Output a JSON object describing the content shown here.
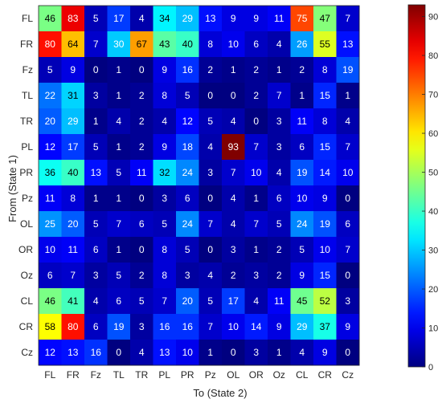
{
  "chart_data": {
    "type": "heatmap",
    "title": "",
    "xlabel": "To (State 2)",
    "ylabel": "From (State 1)",
    "x_categories": [
      "FL",
      "FR",
      "Fz",
      "TL",
      "TR",
      "PL",
      "PR",
      "Pz",
      "OL",
      "OR",
      "Oz",
      "CL",
      "CR",
      "Cz"
    ],
    "y_categories": [
      "FL",
      "FR",
      "Fz",
      "TL",
      "TR",
      "PL",
      "PR",
      "Pz",
      "OL",
      "OR",
      "Oz",
      "CL",
      "CR",
      "Cz"
    ],
    "values": [
      [
        46,
        83,
        5,
        17,
        4,
        34,
        29,
        13,
        9,
        9,
        11,
        75,
        47,
        7
      ],
      [
        80,
        64,
        7,
        30,
        67,
        43,
        40,
        8,
        10,
        6,
        4,
        26,
        55,
        13
      ],
      [
        5,
        9,
        0,
        1,
        0,
        9,
        16,
        2,
        1,
        2,
        1,
        2,
        8,
        19
      ],
      [
        22,
        31,
        3,
        1,
        2,
        8,
        5,
        0,
        0,
        2,
        7,
        1,
        15,
        1
      ],
      [
        20,
        29,
        1,
        4,
        2,
        4,
        12,
        5,
        4,
        0,
        3,
        11,
        8,
        4
      ],
      [
        12,
        17,
        5,
        1,
        2,
        9,
        18,
        4,
        93,
        7,
        3,
        6,
        15,
        7
      ],
      [
        36,
        40,
        13,
        5,
        11,
        32,
        24,
        3,
        7,
        10,
        4,
        19,
        14,
        10
      ],
      [
        11,
        8,
        1,
        1,
        0,
        3,
        6,
        0,
        4,
        1,
        6,
        10,
        9,
        0
      ],
      [
        25,
        20,
        5,
        7,
        6,
        5,
        24,
        7,
        4,
        7,
        5,
        24,
        19,
        6
      ],
      [
        10,
        11,
        6,
        1,
        0,
        8,
        5,
        0,
        3,
        1,
        2,
        5,
        10,
        7
      ],
      [
        6,
        7,
        3,
        5,
        2,
        8,
        3,
        4,
        2,
        3,
        2,
        9,
        15,
        0
      ],
      [
        46,
        41,
        4,
        6,
        5,
        7,
        20,
        5,
        17,
        4,
        11,
        45,
        52,
        3
      ],
      [
        58,
        80,
        6,
        19,
        3,
        16,
        16,
        7,
        10,
        14,
        9,
        29,
        37,
        9
      ],
      [
        12,
        13,
        16,
        0,
        4,
        13,
        10,
        1,
        0,
        3,
        1,
        4,
        9,
        0
      ]
    ],
    "colorbar": {
      "colormap": "jet",
      "range": [
        0,
        93
      ],
      "ticks": [
        0,
        10,
        20,
        30,
        40,
        50,
        60,
        70,
        80,
        90
      ]
    }
  }
}
